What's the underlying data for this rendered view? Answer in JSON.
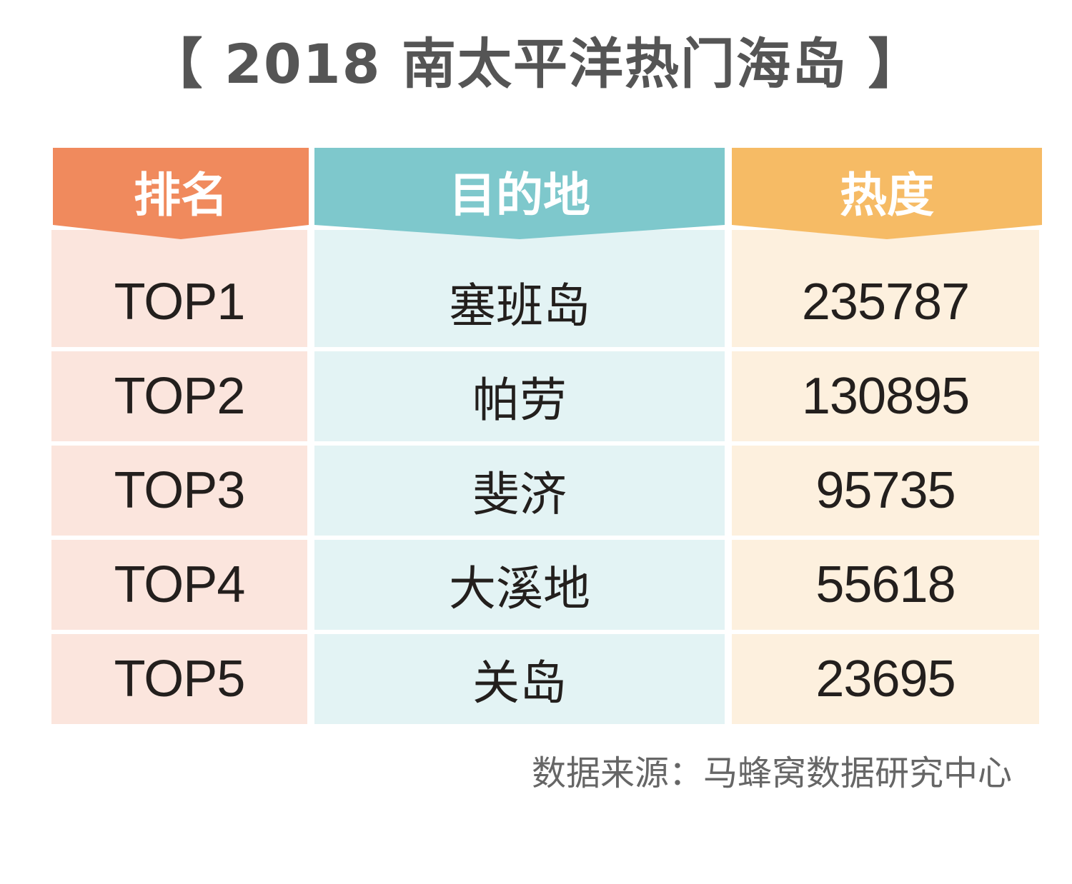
{
  "title": "【 2018 南太平洋热门海岛 】",
  "source": "数据来源：马蜂窝数据研究中心",
  "colors": {
    "rank_header": "#f08a5d",
    "rank_cell": "#fbe5dd",
    "dest_header": "#7ec8cc",
    "dest_cell": "#e3f3f4",
    "heat_header": "#f6bb65",
    "heat_cell": "#fdf0de",
    "text": "#231f1d",
    "title": "#555555"
  },
  "chart_data": {
    "type": "table",
    "columns": [
      "排名",
      "目的地",
      "热度"
    ],
    "rows": [
      [
        "TOP1",
        "塞班岛",
        235787
      ],
      [
        "TOP2",
        "帕劳",
        130895
      ],
      [
        "TOP3",
        "斐济",
        95735
      ],
      [
        "TOP4",
        "大溪地",
        55618
      ],
      [
        "TOP5",
        "关岛",
        23695
      ]
    ]
  }
}
